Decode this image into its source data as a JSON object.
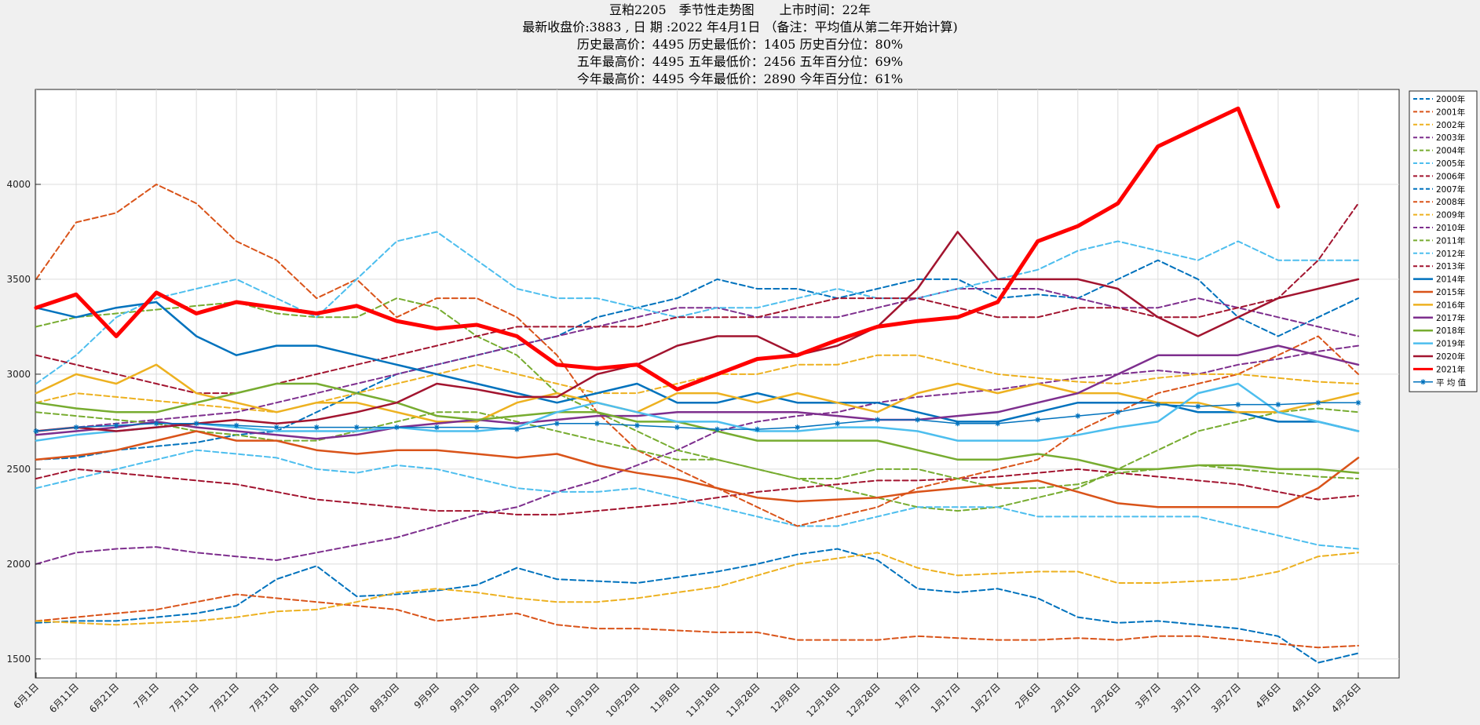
{
  "titles": {
    "line1": "豆粕2205　季节性走势图　　上市时间：22年",
    "line2": "最新收盘价:3883 , 日 期 :2022 年4月1日 （备注：平均值从第二年开始计算)",
    "line3": "历史最高价：4495 历史最低价：1405 历史百分位：80%",
    "line4": "五年最高价：4495 五年最低价：2456 五年百分位：69%",
    "line5": "今年最高价：4495 今年最低价：2890 今年百分位：61%"
  },
  "chart_data": {
    "type": "line",
    "title": "豆粕2205　季节性走势图　　上市时间：22年",
    "xlabel": "",
    "ylabel": "",
    "ylim": [
      1400,
      4500
    ],
    "yticks": [
      1500,
      2000,
      2500,
      3000,
      3500,
      4000
    ],
    "grid": true,
    "legend_position": "right",
    "categories": [
      "6月1日",
      "6月11日",
      "6月21日",
      "7月1日",
      "7月11日",
      "7月21日",
      "7月31日",
      "8月10日",
      "8月20日",
      "8月30日",
      "9月9日",
      "9月19日",
      "9月29日",
      "10月9日",
      "10月19日",
      "10月29日",
      "11月8日",
      "11月18日",
      "11月28日",
      "12月8日",
      "12月18日",
      "12月28日",
      "1月7日",
      "1月17日",
      "1月27日",
      "2月6日",
      "2月16日",
      "2月26日",
      "3月7日",
      "3月17日",
      "3月27日",
      "4月6日",
      "4月16日",
      "4月26日"
    ],
    "series": [
      {
        "name": "2000年",
        "color": "#0072BD",
        "style": "dashed",
        "width": 2,
        "values": [
          1690,
          1700,
          1700,
          1720,
          1740,
          1780,
          1920,
          1990,
          1830,
          1840,
          1860,
          1890,
          1980,
          1920,
          1910,
          1900,
          1930,
          1960,
          2000,
          2050,
          2080,
          2020,
          1870,
          1850,
          1870,
          1820,
          1720,
          1690,
          1700,
          1680,
          1660,
          1620,
          1480,
          1530
        ]
      },
      {
        "name": "2001年",
        "color": "#D95319",
        "style": "dashed",
        "width": 2,
        "values": [
          1700,
          1720,
          1740,
          1760,
          1800,
          1840,
          1820,
          1800,
          1780,
          1760,
          1700,
          1720,
          1740,
          1680,
          1660,
          1660,
          1650,
          1640,
          1640,
          1600,
          1600,
          1600,
          1620,
          1610,
          1600,
          1600,
          1610,
          1600,
          1620,
          1620,
          1600,
          1580,
          1560,
          1570
        ]
      },
      {
        "name": "2002年",
        "color": "#EDB120",
        "style": "dashed",
        "width": 2,
        "values": [
          1700,
          1690,
          1680,
          1690,
          1700,
          1720,
          1750,
          1760,
          1800,
          1850,
          1870,
          1850,
          1820,
          1800,
          1800,
          1820,
          1850,
          1880,
          1940,
          2000,
          2030,
          2060,
          1980,
          1940,
          1950,
          1960,
          1960,
          1900,
          1900,
          1910,
          1920,
          1960,
          2040,
          2060
        ]
      },
      {
        "name": "2003年",
        "color": "#7E2F8E",
        "style": "dashed",
        "width": 2,
        "values": [
          2000,
          2060,
          2080,
          2090,
          2060,
          2040,
          2020,
          2060,
          2100,
          2140,
          2200,
          2260,
          2300,
          2380,
          2440,
          2520,
          2600,
          2700,
          2750,
          2780,
          2800,
          2850,
          2880,
          2900,
          2920,
          2950,
          2980,
          3000,
          3020,
          3000,
          3050,
          3080,
          3120,
          3150
        ]
      },
      {
        "name": "2004年",
        "color": "#77AC30",
        "style": "dashed",
        "width": 2,
        "values": [
          3250,
          3300,
          3320,
          3340,
          3360,
          3380,
          3320,
          3300,
          3300,
          3400,
          3350,
          3200,
          3100,
          2900,
          2800,
          2700,
          2600,
          2550,
          2500,
          2450,
          2400,
          2350,
          2300,
          2280,
          2300,
          2350,
          2400,
          2500,
          2600,
          2700,
          2750,
          2800,
          2820,
          2800
        ]
      },
      {
        "name": "2005年",
        "color": "#4DBEEE",
        "style": "dashed",
        "width": 2,
        "values": [
          2400,
          2450,
          2500,
          2550,
          2600,
          2580,
          2560,
          2500,
          2480,
          2520,
          2500,
          2450,
          2400,
          2380,
          2380,
          2400,
          2350,
          2300,
          2250,
          2200,
          2200,
          2250,
          2300,
          2300,
          2300,
          2250,
          2250,
          2250,
          2250,
          2250,
          2200,
          2150,
          2100,
          2080
        ]
      },
      {
        "name": "2006年",
        "color": "#A2142F",
        "style": "dashed",
        "width": 2,
        "values": [
          2450,
          2500,
          2480,
          2460,
          2440,
          2420,
          2380,
          2340,
          2320,
          2300,
          2280,
          2280,
          2260,
          2260,
          2280,
          2300,
          2320,
          2350,
          2380,
          2400,
          2420,
          2440,
          2440,
          2450,
          2460,
          2480,
          2500,
          2480,
          2460,
          2440,
          2420,
          2380,
          2340,
          2360
        ]
      },
      {
        "name": "2007年",
        "color": "#0072BD",
        "style": "dashed",
        "width": 2,
        "values": [
          2550,
          2560,
          2600,
          2620,
          2640,
          2680,
          2700,
          2800,
          2900,
          3000,
          3050,
          3100,
          3150,
          3200,
          3300,
          3350,
          3400,
          3500,
          3450,
          3450,
          3400,
          3450,
          3500,
          3500,
          3400,
          3420,
          3400,
          3500,
          3600,
          3500,
          3300,
          3200,
          3300,
          3400
        ]
      },
      {
        "name": "2008年",
        "color": "#D95319",
        "style": "dashed",
        "width": 2,
        "values": [
          3500,
          3800,
          3850,
          4000,
          3900,
          3700,
          3600,
          3400,
          3500,
          3300,
          3400,
          3400,
          3300,
          3100,
          2800,
          2600,
          2500,
          2400,
          2300,
          2200,
          2250,
          2300,
          2400,
          2450,
          2500,
          2550,
          2700,
          2800,
          2900,
          2950,
          3000,
          3100,
          3200,
          3000
        ]
      },
      {
        "name": "2009年",
        "color": "#EDB120",
        "style": "dashed",
        "width": 2,
        "values": [
          2850,
          2900,
          2880,
          2860,
          2840,
          2820,
          2800,
          2850,
          2900,
          2950,
          3000,
          3050,
          3000,
          2950,
          2900,
          2900,
          2950,
          3000,
          3000,
          3050,
          3050,
          3100,
          3100,
          3050,
          3000,
          2980,
          2960,
          2950,
          2980,
          3000,
          3000,
          2980,
          2960,
          2950
        ]
      },
      {
        "name": "2010年",
        "color": "#7E2F8E",
        "style": "dashed",
        "width": 2,
        "values": [
          2700,
          2720,
          2740,
          2760,
          2780,
          2800,
          2850,
          2900,
          2950,
          3000,
          3050,
          3100,
          3150,
          3200,
          3250,
          3300,
          3350,
          3350,
          3300,
          3300,
          3300,
          3350,
          3400,
          3450,
          3450,
          3450,
          3400,
          3350,
          3350,
          3400,
          3350,
          3300,
          3250,
          3200
        ]
      },
      {
        "name": "2011年",
        "color": "#77AC30",
        "style": "dashed",
        "width": 2,
        "values": [
          2800,
          2780,
          2760,
          2740,
          2700,
          2680,
          2650,
          2650,
          2700,
          2750,
          2800,
          2800,
          2750,
          2700,
          2650,
          2600,
          2550,
          2550,
          2500,
          2450,
          2450,
          2500,
          2500,
          2450,
          2400,
          2400,
          2420,
          2480,
          2500,
          2520,
          2500,
          2480,
          2460,
          2450
        ]
      },
      {
        "name": "2012年",
        "color": "#4DBEEE",
        "style": "dashed",
        "width": 2,
        "values": [
          2950,
          3100,
          3300,
          3400,
          3450,
          3500,
          3400,
          3300,
          3500,
          3700,
          3750,
          3600,
          3450,
          3400,
          3400,
          3350,
          3300,
          3350,
          3350,
          3400,
          3450,
          3400,
          3400,
          3450,
          3500,
          3550,
          3650,
          3700,
          3650,
          3600,
          3700,
          3600,
          3600,
          3600
        ]
      },
      {
        "name": "2013年",
        "color": "#A2142F",
        "style": "dashed",
        "width": 2,
        "values": [
          3100,
          3050,
          3000,
          2950,
          2900,
          2900,
          2950,
          3000,
          3050,
          3100,
          3150,
          3200,
          3250,
          3250,
          3250,
          3250,
          3300,
          3300,
          3300,
          3350,
          3400,
          3400,
          3400,
          3350,
          3300,
          3300,
          3350,
          3350,
          3300,
          3300,
          3350,
          3400,
          3600,
          3900
        ]
      },
      {
        "name": "2014年",
        "color": "#0072BD",
        "style": "solid",
        "width": 2.5,
        "values": [
          3350,
          3300,
          3350,
          3380,
          3200,
          3100,
          3150,
          3150,
          3100,
          3050,
          3000,
          2950,
          2900,
          2850,
          2900,
          2950,
          2850,
          2850,
          2900,
          2850,
          2850,
          2850,
          2800,
          2750,
          2750,
          2800,
          2850,
          2850,
          2850,
          2800,
          2800,
          2750,
          2750,
          2700
        ]
      },
      {
        "name": "2015年",
        "color": "#D95319",
        "style": "solid",
        "width": 2.5,
        "values": [
          2550,
          2570,
          2600,
          2650,
          2700,
          2650,
          2650,
          2600,
          2580,
          2600,
          2600,
          2580,
          2560,
          2580,
          2520,
          2480,
          2450,
          2400,
          2350,
          2330,
          2340,
          2350,
          2380,
          2400,
          2420,
          2440,
          2380,
          2320,
          2300,
          2300,
          2300,
          2300,
          2400,
          2560
        ]
      },
      {
        "name": "2016年",
        "color": "#EDB120",
        "style": "solid",
        "width": 2.5,
        "values": [
          2900,
          3000,
          2950,
          3050,
          2900,
          2850,
          2800,
          2850,
          2850,
          2800,
          2750,
          2750,
          2850,
          2900,
          2850,
          2800,
          2900,
          2900,
          2850,
          2900,
          2850,
          2800,
          2900,
          2950,
          2900,
          2950,
          2900,
          2900,
          2850,
          2850,
          2800,
          2800,
          2850,
          2900
        ]
      },
      {
        "name": "2017年",
        "color": "#7E2F8E",
        "style": "solid",
        "width": 2.5,
        "values": [
          2680,
          2700,
          2720,
          2750,
          2720,
          2700,
          2680,
          2660,
          2680,
          2720,
          2740,
          2760,
          2740,
          2760,
          2780,
          2780,
          2800,
          2800,
          2800,
          2800,
          2780,
          2760,
          2760,
          2780,
          2800,
          2850,
          2900,
          3000,
          3100,
          3100,
          3100,
          3150,
          3100,
          3050
        ]
      },
      {
        "name": "2018年",
        "color": "#77AC30",
        "style": "solid",
        "width": 2.5,
        "values": [
          2850,
          2820,
          2800,
          2800,
          2850,
          2900,
          2950,
          2950,
          2900,
          2850,
          2780,
          2760,
          2780,
          2800,
          2800,
          2750,
          2750,
          2700,
          2650,
          2650,
          2650,
          2650,
          2600,
          2550,
          2550,
          2580,
          2550,
          2500,
          2500,
          2520,
          2520,
          2500,
          2500,
          2480
        ]
      },
      {
        "name": "2019年",
        "color": "#4DBEEE",
        "style": "solid",
        "width": 2.5,
        "values": [
          2650,
          2680,
          2700,
          2720,
          2740,
          2720,
          2700,
          2700,
          2700,
          2720,
          2700,
          2700,
          2720,
          2800,
          2850,
          2800,
          2750,
          2750,
          2700,
          2700,
          2720,
          2720,
          2700,
          2650,
          2650,
          2650,
          2680,
          2720,
          2750,
          2900,
          2950,
          2800,
          2750,
          2700
        ]
      },
      {
        "name": "2020年",
        "color": "#A2142F",
        "style": "solid",
        "width": 2.5,
        "values": [
          2700,
          2720,
          2700,
          2720,
          2740,
          2760,
          2740,
          2760,
          2800,
          2850,
          2950,
          2920,
          2880,
          2880,
          3000,
          3050,
          3150,
          3200,
          3200,
          3100,
          3150,
          3250,
          3450,
          3750,
          3500,
          3500,
          3500,
          3450,
          3300,
          3200,
          3300,
          3400,
          3450,
          3500
        ]
      },
      {
        "name": "2021年",
        "color": "#FF0000",
        "style": "solid",
        "width": 5,
        "values": [
          3350,
          3420,
          3200,
          3430,
          3320,
          3380,
          3350,
          3320,
          3360,
          3280,
          3240,
          3260,
          3200,
          3050,
          3030,
          3050,
          2920,
          3000,
          3080,
          3100,
          3180,
          3250,
          3280,
          3300,
          3380,
          3700,
          3780,
          3900,
          4200,
          4300,
          4400,
          3883,
          null,
          null
        ]
      },
      {
        "name": "平 均 值",
        "color": "#0072BD",
        "style": "solid",
        "width": 1.5,
        "marker": "star",
        "values": [
          2700,
          2720,
          2730,
          2740,
          2740,
          2730,
          2720,
          2720,
          2720,
          2720,
          2720,
          2720,
          2710,
          2740,
          2740,
          2730,
          2720,
          2710,
          2710,
          2720,
          2740,
          2760,
          2760,
          2740,
          2740,
          2760,
          2780,
          2800,
          2840,
          2830,
          2840,
          2840,
          2850,
          2850
        ]
      }
    ]
  }
}
